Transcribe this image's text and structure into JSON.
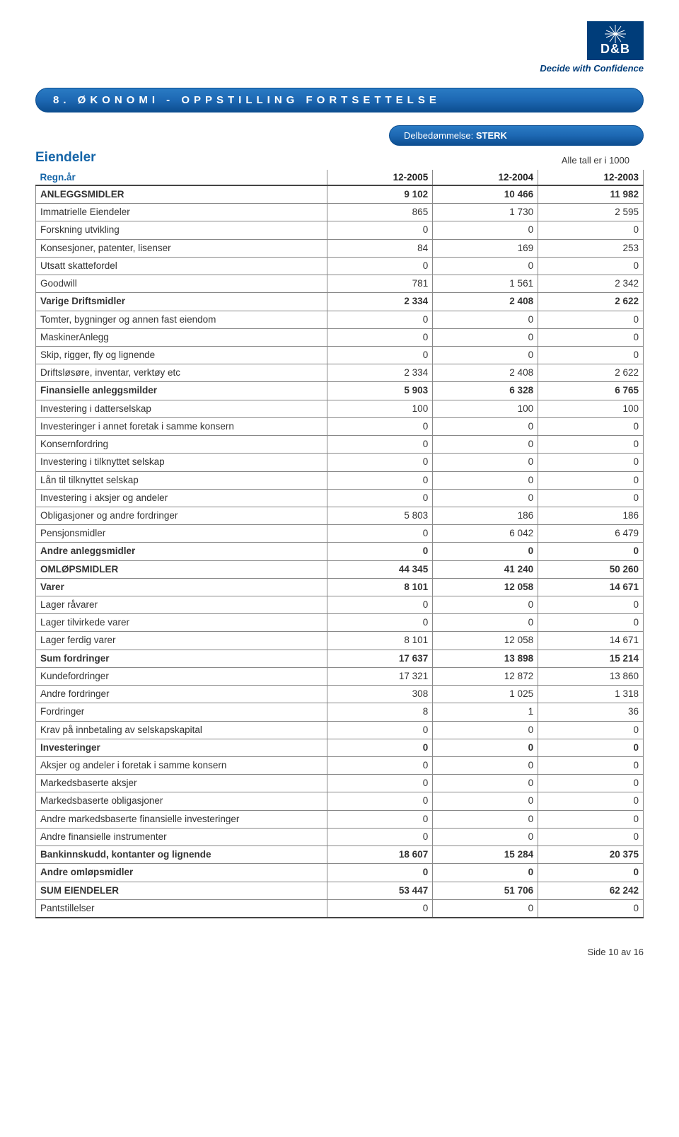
{
  "logo": {
    "brand": "D&B",
    "tagline": "Decide with Confidence"
  },
  "section_header": "8. ØKONOMI - OPPSTILLING FORTSETTELSE",
  "badge": {
    "label": "Delbedømmelse:",
    "value": "STERK"
  },
  "section_title": "Eiendeler",
  "unit_note": "Alle tall er i 1000",
  "columns": {
    "c0": "Regn.år",
    "c1": "12-2005",
    "c2": "12-2004",
    "c3": "12-2003"
  },
  "rows": [
    {
      "label": "ANLEGGSMIDLER",
      "bold": true,
      "v": [
        "9 102",
        "10 466",
        "11 982"
      ]
    },
    {
      "label": "Immatrielle Eiendeler",
      "bold": false,
      "v": [
        "865",
        "1 730",
        "2 595"
      ]
    },
    {
      "label": "Forskning utvikling",
      "bold": false,
      "v": [
        "0",
        "0",
        "0"
      ]
    },
    {
      "label": "Konsesjoner, patenter, lisenser",
      "bold": false,
      "v": [
        "84",
        "169",
        "253"
      ]
    },
    {
      "label": "Utsatt skattefordel",
      "bold": false,
      "v": [
        "0",
        "0",
        "0"
      ]
    },
    {
      "label": "Goodwill",
      "bold": false,
      "v": [
        "781",
        "1 561",
        "2 342"
      ]
    },
    {
      "label": "Varige Driftsmidler",
      "bold": true,
      "v": [
        "2 334",
        "2 408",
        "2 622"
      ]
    },
    {
      "label": "Tomter, bygninger og annen fast eiendom",
      "bold": false,
      "v": [
        "0",
        "0",
        "0"
      ]
    },
    {
      "label": "MaskinerAnlegg",
      "bold": false,
      "v": [
        "0",
        "0",
        "0"
      ]
    },
    {
      "label": "Skip, rigger, fly og lignende",
      "bold": false,
      "v": [
        "0",
        "0",
        "0"
      ]
    },
    {
      "label": "Driftsløsøre, inventar, verktøy etc",
      "bold": false,
      "v": [
        "2 334",
        "2 408",
        "2 622"
      ]
    },
    {
      "label": "Finansielle anleggsmilder",
      "bold": true,
      "v": [
        "5 903",
        "6 328",
        "6 765"
      ]
    },
    {
      "label": "Investering i datterselskap",
      "bold": false,
      "v": [
        "100",
        "100",
        "100"
      ]
    },
    {
      "label": "Investeringer i annet foretak i samme konsern",
      "bold": false,
      "v": [
        "0",
        "0",
        "0"
      ]
    },
    {
      "label": "Konsernfordring",
      "bold": false,
      "v": [
        "0",
        "0",
        "0"
      ]
    },
    {
      "label": "Investering i tilknyttet selskap",
      "bold": false,
      "v": [
        "0",
        "0",
        "0"
      ]
    },
    {
      "label": "Lån til tilknyttet selskap",
      "bold": false,
      "v": [
        "0",
        "0",
        "0"
      ]
    },
    {
      "label": "Investering i aksjer og andeler",
      "bold": false,
      "v": [
        "0",
        "0",
        "0"
      ]
    },
    {
      "label": "Obligasjoner og andre fordringer",
      "bold": false,
      "v": [
        "5 803",
        "186",
        "186"
      ]
    },
    {
      "label": "Pensjonsmidler",
      "bold": false,
      "v": [
        "0",
        "6 042",
        "6 479"
      ]
    },
    {
      "label": "Andre anleggsmidler",
      "bold": true,
      "v": [
        "0",
        "0",
        "0"
      ]
    },
    {
      "label": "OMLØPSMIDLER",
      "bold": true,
      "v": [
        "44 345",
        "41 240",
        "50 260"
      ]
    },
    {
      "label": "Varer",
      "bold": true,
      "v": [
        "8 101",
        "12 058",
        "14 671"
      ]
    },
    {
      "label": "Lager råvarer",
      "bold": false,
      "v": [
        "0",
        "0",
        "0"
      ]
    },
    {
      "label": "Lager tilvirkede varer",
      "bold": false,
      "v": [
        "0",
        "0",
        "0"
      ]
    },
    {
      "label": "Lager ferdig varer",
      "bold": false,
      "v": [
        "8 101",
        "12 058",
        "14 671"
      ]
    },
    {
      "label": "Sum fordringer",
      "bold": true,
      "v": [
        "17 637",
        "13 898",
        "15 214"
      ]
    },
    {
      "label": "Kundefordringer",
      "bold": false,
      "v": [
        "17 321",
        "12 872",
        "13 860"
      ]
    },
    {
      "label": "Andre fordringer",
      "bold": false,
      "v": [
        "308",
        "1 025",
        "1 318"
      ]
    },
    {
      "label": "Fordringer",
      "bold": false,
      "v": [
        "8",
        "1",
        "36"
      ]
    },
    {
      "label": "Krav på innbetaling av selskapskapital",
      "bold": false,
      "v": [
        "0",
        "0",
        "0"
      ]
    },
    {
      "label": "Investeringer",
      "bold": true,
      "v": [
        "0",
        "0",
        "0"
      ]
    },
    {
      "label": "Aksjer og andeler i foretak i samme konsern",
      "bold": false,
      "v": [
        "0",
        "0",
        "0"
      ]
    },
    {
      "label": "Markedsbaserte aksjer",
      "bold": false,
      "v": [
        "0",
        "0",
        "0"
      ]
    },
    {
      "label": "Markedsbaserte obligasjoner",
      "bold": false,
      "v": [
        "0",
        "0",
        "0"
      ]
    },
    {
      "label": "Andre markedsbaserte finansielle investeringer",
      "bold": false,
      "v": [
        "0",
        "0",
        "0"
      ]
    },
    {
      "label": "Andre finansielle instrumenter",
      "bold": false,
      "v": [
        "0",
        "0",
        "0"
      ]
    },
    {
      "label": "Bankinnskudd, kontanter og lignende",
      "bold": true,
      "v": [
        "18 607",
        "15 284",
        "20 375"
      ]
    },
    {
      "label": "Andre omløpsmidler",
      "bold": true,
      "v": [
        "0",
        "0",
        "0"
      ]
    },
    {
      "label": "SUM EIENDELER",
      "bold": true,
      "v": [
        "53 447",
        "51 706",
        "62 242"
      ]
    },
    {
      "label": "Pantstillelser",
      "bold": false,
      "v": [
        "0",
        "0",
        "0"
      ]
    }
  ],
  "footer": "Side 10 av 16"
}
